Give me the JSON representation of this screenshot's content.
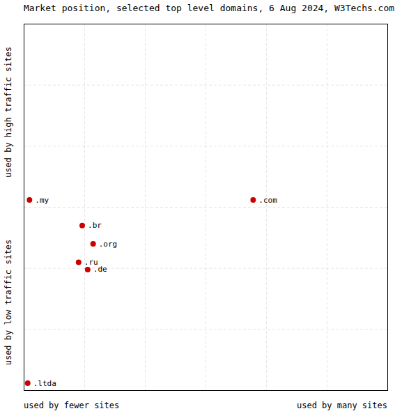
{
  "chart_data": {
    "type": "scatter",
    "title": "Market position, selected top level domains, 6 Aug 2024, W3Techs.com",
    "xlabels": [
      "used by fewer sites",
      "used by many sites"
    ],
    "ylabels": [
      "used by high traffic sites",
      "used by low traffic sites"
    ],
    "labels": [
      ".my",
      ".br",
      ".org",
      ".ru",
      ".de",
      ".com",
      ".ltda"
    ],
    "x": [
      1.5,
      16,
      19,
      15,
      17.5,
      63,
      1.0
    ],
    "y": [
      52,
      45,
      40,
      35,
      33,
      52,
      2
    ],
    "color": "#cc0000",
    "xlim": [
      0,
      100
    ],
    "ylim": [
      0,
      100
    ],
    "xticks": [
      16.666666666666668,
      33.333333333333336,
      50.0,
      66.66666666666667,
      83.33333333333334
    ],
    "yticks": [
      16.666666666666668,
      33.333333333333336,
      50.0,
      66.66666666666667,
      83.33333333333334
    ],
    "grid": true,
    "tick_labels": false
  }
}
